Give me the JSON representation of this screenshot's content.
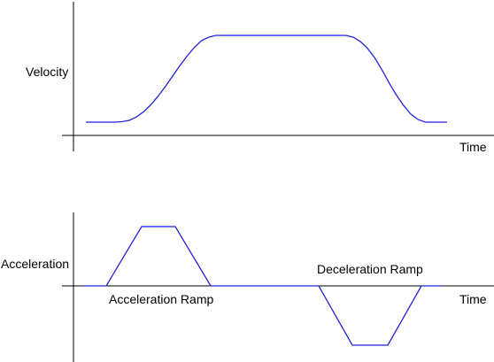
{
  "chart_data": [
    {
      "type": "line",
      "ylabel": "Velocity",
      "xlabel": "Time",
      "x": [
        0,
        2,
        4,
        6,
        8,
        10,
        12,
        14,
        16,
        18,
        20,
        22,
        24,
        26,
        28,
        30,
        32,
        34,
        36,
        38,
        40,
        42,
        44,
        46,
        48,
        50,
        52,
        54,
        56,
        58,
        60,
        62,
        64,
        66,
        68,
        70,
        72,
        74,
        76,
        78,
        80,
        82,
        84,
        86,
        88,
        90,
        92,
        94,
        96,
        98,
        100
      ],
      "series": [
        {
          "values": [
            0,
            0,
            0,
            0,
            0,
            0.005,
            0.02,
            0.06,
            0.12,
            0.2,
            0.3,
            0.41,
            0.53,
            0.65,
            0.76,
            0.86,
            0.94,
            0.98,
            1,
            1,
            1,
            1,
            1,
            1,
            1,
            1,
            1,
            1,
            1,
            1,
            1,
            1,
            1,
            1,
            1,
            1,
            1,
            0.98,
            0.93,
            0.85,
            0.74,
            0.6,
            0.45,
            0.31,
            0.19,
            0.09,
            0.03,
            0,
            0,
            0,
            0
          ]
        }
      ]
    },
    {
      "type": "line",
      "ylabel": "Acceleration",
      "xlabel": "Time",
      "x": [
        0,
        6.5,
        16.5,
        26,
        36,
        66.5,
        76,
        86,
        95.5,
        101.5
      ],
      "series": [
        {
          "values": [
            0,
            0,
            1,
            1,
            0,
            0,
            -1,
            -1,
            0,
            0
          ]
        }
      ],
      "annotations": [
        {
          "text": "Acceleration Ramp"
        },
        {
          "text": "Deceleration Ramp"
        }
      ]
    }
  ]
}
